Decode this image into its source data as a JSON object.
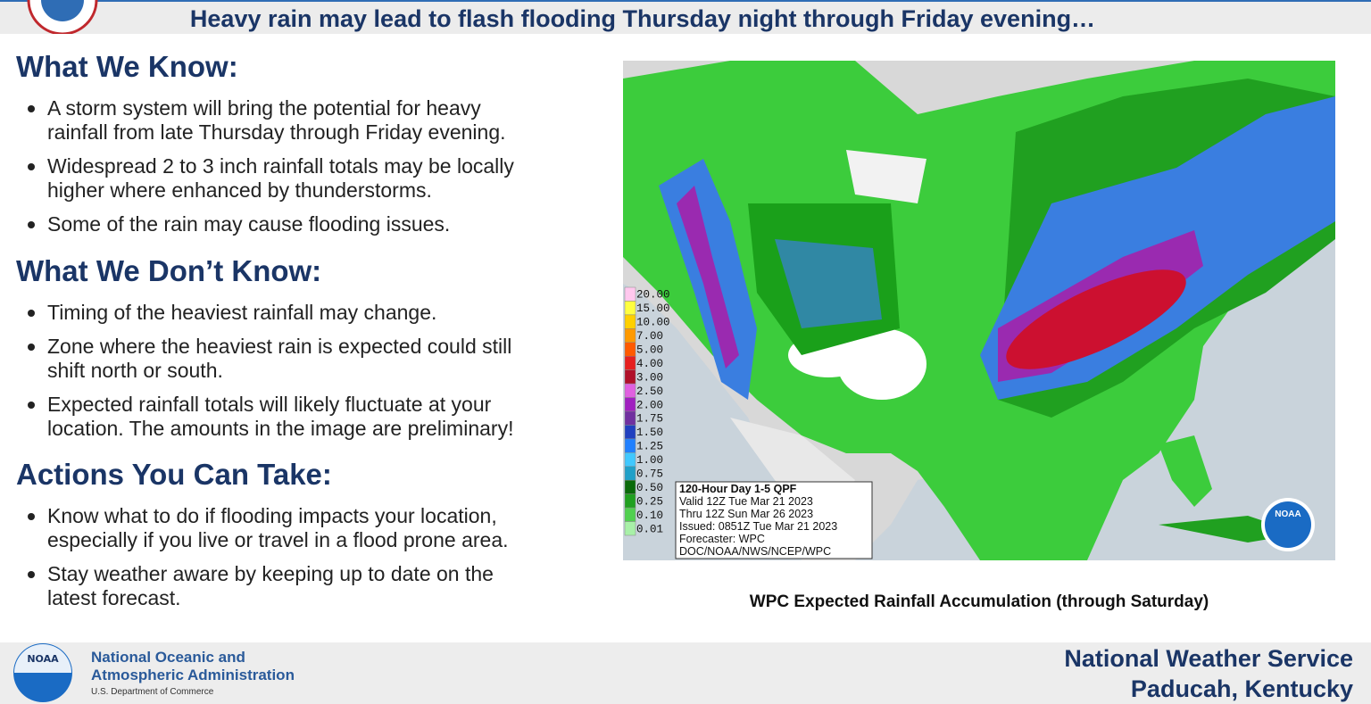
{
  "header": {
    "title": "Heavy rain may lead to flash flooding Thursday night through Friday evening…"
  },
  "sections": [
    {
      "heading": "What We Know:",
      "bullets": [
        [
          "A storm system will bring the potential for heavy",
          "rainfall from late Thursday through Friday evening."
        ],
        [
          "Widespread 2 to 3 inch rainfall totals may be locally",
          "higher where enhanced by thunderstorms."
        ],
        [
          "Some of the rain may cause flooding issues."
        ]
      ]
    },
    {
      "heading": "What We Don’t Know:",
      "bullets": [
        [
          "Timing of the heaviest rainfall may change."
        ],
        [
          "Zone where the heaviest rain is expected could still",
          "shift north or south."
        ],
        [
          "Expected rainfall totals will likely fluctuate at your",
          "location.  The amounts in the image are preliminary!"
        ]
      ]
    },
    {
      "heading": "Actions You Can Take:",
      "bullets": [
        [
          "Know what to do if flooding impacts your location,",
          "especially if you live or travel in a flood prone area."
        ],
        [
          "Stay weather aware by keeping up to date on the",
          "latest forecast."
        ]
      ]
    }
  ],
  "map": {
    "legend": [
      {
        "label": "20.00",
        "color": "#ffc8ee"
      },
      {
        "label": "15.00",
        "color": "#ffff40"
      },
      {
        "label": "10.00",
        "color": "#ffd000"
      },
      {
        "label": "7.00",
        "color": "#ff9a00"
      },
      {
        "label": "5.00",
        "color": "#ff5a00"
      },
      {
        "label": "4.00",
        "color": "#e62020"
      },
      {
        "label": "3.00",
        "color": "#b0102a"
      },
      {
        "label": "2.50",
        "color": "#e060e0"
      },
      {
        "label": "2.00",
        "color": "#a020c0"
      },
      {
        "label": "1.75",
        "color": "#7030a0"
      },
      {
        "label": "1.50",
        "color": "#2040c0"
      },
      {
        "label": "1.25",
        "color": "#2080ff"
      },
      {
        "label": "1.00",
        "color": "#40c8ff"
      },
      {
        "label": "0.75",
        "color": "#20a0c8"
      },
      {
        "label": "0.50",
        "color": "#0a6a0a"
      },
      {
        "label": "0.25",
        "color": "#20a020"
      },
      {
        "label": "0.10",
        "color": "#50d050"
      },
      {
        "label": "0.01",
        "color": "#a8f0a8"
      }
    ],
    "info": [
      "120-Hour Day 1-5 QPF",
      "Valid 12Z Tue Mar 21 2023",
      "Thru 12Z Sun Mar 26 2023",
      "Issued: 0851Z Tue Mar 21 2023",
      "Forecaster: WPC",
      "DOC/NOAA/NWS/NCEP/WPC"
    ],
    "logo_text": "NOAA",
    "caption": "WPC Expected Rainfall Accumulation (through Saturday)"
  },
  "footer": {
    "logo_text": "NOAA",
    "org": [
      "National Oceanic and",
      "Atmospheric Administration"
    ],
    "dept": "U.S. Department of Commerce",
    "office": [
      "National Weather Service",
      "Paducah, Kentucky"
    ]
  }
}
